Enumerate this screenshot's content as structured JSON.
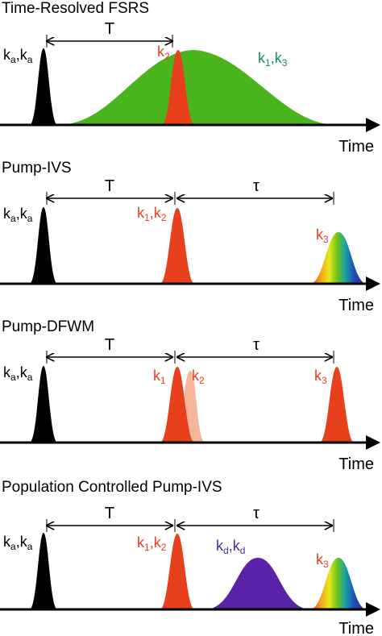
{
  "panels": [
    {
      "title": "Time-Resolved FSRS",
      "interval1": "T",
      "pulse1": {
        "base": "k",
        "s1": "a",
        "s2": "a"
      },
      "pulse2": {
        "base": "k",
        "s1": "2"
      },
      "broad": {
        "base": "k",
        "s1": "1",
        "s2": "3"
      },
      "axis": "Time"
    },
    {
      "title": "Pump-IVS",
      "interval1": "T",
      "interval2": "τ",
      "pulse1": {
        "base": "k",
        "s1": "a",
        "s2": "a"
      },
      "pulse2": {
        "base": "k",
        "s1": "1",
        "s2": "2"
      },
      "pulse3": {
        "base": "k",
        "s1": "3"
      },
      "axis": "Time"
    },
    {
      "title": "Pump-DFWM",
      "interval1": "T",
      "interval2": "τ",
      "pulse1": {
        "base": "k",
        "s1": "a",
        "s2": "a"
      },
      "pulse2": {
        "base": "k",
        "s1": "1"
      },
      "pulse2b": {
        "base": "k",
        "s1": "2"
      },
      "pulse3": {
        "base": "k",
        "s1": "3"
      },
      "axis": "Time"
    },
    {
      "title": "Population Controlled Pump-IVS",
      "interval1": "T",
      "interval2": "τ",
      "pulse1": {
        "base": "k",
        "s1": "a",
        "s2": "a"
      },
      "pulse2": {
        "base": "k",
        "s1": "1",
        "s2": "2"
      },
      "broad": {
        "base": "k",
        "s1": "d",
        "s2": "d"
      },
      "pulse3": {
        "base": "k",
        "s1": "3"
      },
      "axis": "Time"
    }
  ],
  "colors": {
    "black": "#000000",
    "red": "#e8401c",
    "green": "#49b41c",
    "green_label": "#1f8a5a",
    "purple": "#5a22a6",
    "purple_label": "#4a2aa8",
    "pale_red": "#f4a98a"
  }
}
